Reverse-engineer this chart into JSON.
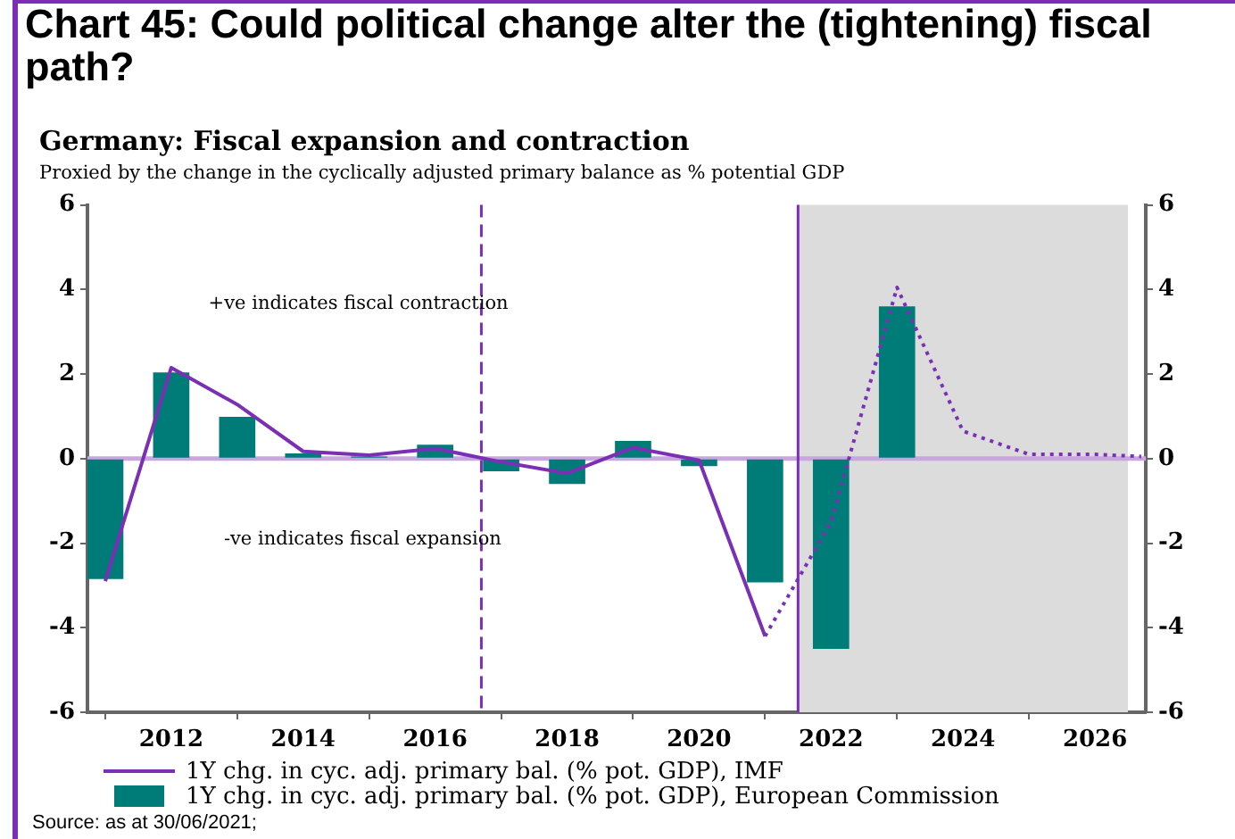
{
  "chart_data": {
    "type": "bar",
    "title": "Chart 45: Could political change alter the (tightening) fiscal path?",
    "subtitle": "Germany: Fiscal expansion and contraction",
    "annotations": [
      "Proxied by the change in the cyclically adjusted primary balance as % potential GDP",
      "+ve indicates fiscal contraction",
      "-ve indicates fiscal expansion",
      "Source: as at 30/06/2021;"
    ],
    "x": [
      2011,
      2012,
      2013,
      2014,
      2015,
      2016,
      2017,
      2018,
      2019,
      2020,
      2021,
      2022,
      2023
    ],
    "series": [
      {
        "name": "1Y chg. in cyc. adj. primary bal. (% pot. GDP), IMF",
        "type": "line",
        "color": "#7b2fb5",
        "line_style": "solid",
        "x": [
          2011,
          2012,
          2013,
          2014,
          2015,
          2016,
          2017,
          2018,
          2019,
          2020,
          2021
        ],
        "values": [
          -2.9,
          2.15,
          1.28,
          0.17,
          0.08,
          0.24,
          -0.08,
          -0.35,
          0.26,
          -0.04,
          -4.2
        ]
      },
      {
        "type": "line",
        "color": "#7b2fb5",
        "line_style": "dotted",
        "x": [
          2021,
          2022,
          2023,
          2024,
          2025,
          2026,
          2026.7
        ],
        "values": [
          -4.2,
          -1.5,
          4.05,
          0.65,
          0.1,
          0.1,
          0.05
        ]
      },
      {
        "name": "1Y chg. in cyc. adj. primary bal. (% pot. GDP), European Commission",
        "color": "#007c78",
        "values": [
          -2.85,
          2.04,
          0.99,
          0.12,
          0.05,
          0.33,
          -0.3,
          -0.6,
          0.42,
          -0.18,
          -2.93,
          -4.5,
          3.6
        ]
      }
    ],
    "xlim": [
      2010.73,
      2026.77
    ],
    "xticks": [
      2012,
      2014,
      2016,
      2018,
      2020,
      2022,
      2024,
      2026
    ],
    "ylim": [
      -6,
      6
    ],
    "yticks": [
      -6,
      -4,
      -2,
      0,
      2,
      4,
      6
    ],
    "y2lim": [
      -6,
      6
    ],
    "y2ticks": [
      -6,
      -4,
      -2,
      0,
      2,
      4,
      6
    ],
    "grid": false,
    "legend": "bottom",
    "marker": "none",
    "ref_lines": [
      {
        "axis": "y",
        "value": 0,
        "color": "#c9a6e0",
        "line_style": "solid"
      },
      {
        "axis": "x",
        "value": 2021.5,
        "color": "#7b2fb5",
        "line_style": "solid"
      },
      {
        "axis": "x",
        "value": 2016.7,
        "color": "#7b2fb5",
        "line_style": "dashed"
      }
    ],
    "bands": [
      {
        "axis": "x",
        "from": 2021.5,
        "to": 2026.5,
        "color": "#dcdcdc"
      }
    ]
  }
}
